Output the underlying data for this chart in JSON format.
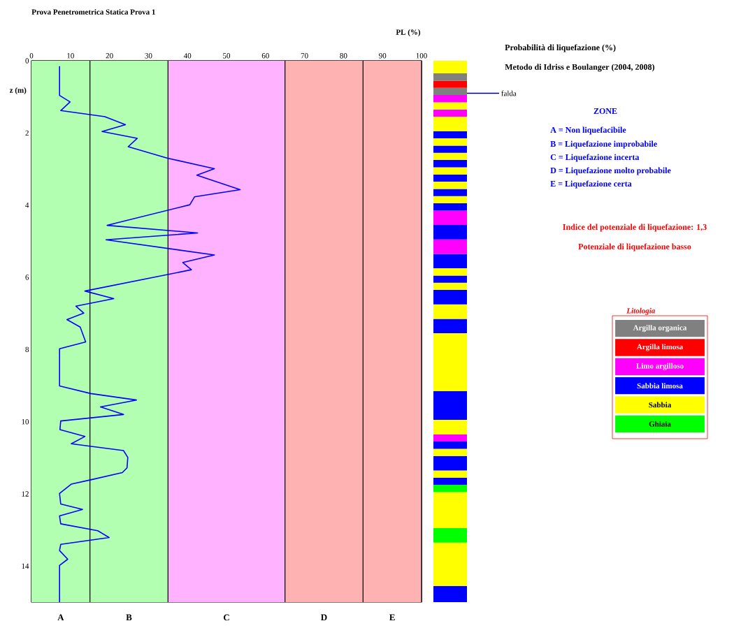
{
  "chart_data": [
    {
      "type": "line",
      "title": "Prova Penetrometrica Statica Prova 1",
      "xlabel": "PL (%)",
      "ylabel": "z (m)",
      "xlim": [
        0,
        100
      ],
      "xticks": [
        0,
        10,
        20,
        30,
        40,
        50,
        60,
        70,
        80,
        90,
        100
      ],
      "ylim": [
        15,
        0
      ],
      "yticks": [
        0,
        2,
        4,
        6,
        8,
        10,
        12,
        14
      ],
      "grid": true,
      "bands": [
        {
          "axis": "x",
          "from": 0,
          "to": 15,
          "label": "A",
          "color": "#b2ffb2"
        },
        {
          "axis": "x",
          "from": 15,
          "to": 35,
          "label": "B",
          "color": "#b2ffb2"
        },
        {
          "axis": "x",
          "from": 35,
          "to": 65,
          "label": "C",
          "color": "#ffb2ff"
        },
        {
          "axis": "x",
          "from": 65,
          "to": 85,
          "label": "D",
          "color": "#ffb2b2"
        },
        {
          "axis": "x",
          "from": 85,
          "to": 100,
          "label": "E",
          "color": "#ffb2b2"
        }
      ],
      "series": [
        {
          "color": "#0000ff",
          "x": [
            7.2,
            7.2,
            9.9,
            7.5,
            18.8,
            24.1,
            18.1,
            27.1,
            24.8,
            34.9,
            46.9,
            42.4,
            53.5,
            41.8,
            40.6,
            19.4,
            42.6,
            19.1,
            46.9,
            38.8,
            41.0,
            13.7,
            21.1,
            11.4,
            13.4,
            9.1,
            12.5,
            13.9,
            7.2,
            7.2,
            15.2,
            26.9,
            17.7,
            23.6,
            7.5,
            7.3,
            13.7,
            10.2,
            23.6,
            24.7,
            24.5,
            23.3,
            15.2,
            10.2,
            7.2,
            7.5,
            13.1,
            7.2,
            7.5,
            17.0,
            19.9,
            7.5,
            7.2,
            9.3,
            7.2,
            7.2
          ],
          "values": [
            0.15,
            0.96,
            1.14,
            1.38,
            1.55,
            1.77,
            1.96,
            2.15,
            2.38,
            2.7,
            2.99,
            3.17,
            3.57,
            3.77,
            3.99,
            4.56,
            4.77,
            4.96,
            5.38,
            5.59,
            5.79,
            6.38,
            6.59,
            6.8,
            6.99,
            7.17,
            7.38,
            7.79,
            7.98,
            9.01,
            9.22,
            9.4,
            9.59,
            9.8,
            9.98,
            10.22,
            10.41,
            10.61,
            10.8,
            10.99,
            11.28,
            11.41,
            11.61,
            11.73,
            11.99,
            12.28,
            12.43,
            12.61,
            12.83,
            13.02,
            13.21,
            13.4,
            13.57,
            13.81,
            13.98,
            15
          ]
        }
      ],
      "annotations": [
        "Probabilità di liquefazione (%)",
        "Metodo di Idriss e Boulanger (2004, 2008)",
        "ZONE",
        "A = Non liquefacibile",
        "B = Liquefazione improbabile",
        "C = Liquefazione incerta",
        "D = Liquefazione molto probabile",
        "E = Liquefazione certa",
        "Indice del potenziale di liquefazione: 1,3",
        "Potenziale di liquefazione basso"
      ]
    },
    {
      "type": "bar",
      "stacked": true,
      "categories": [
        null
      ],
      "ylim": [
        15,
        0
      ],
      "tick_labels": false,
      "ref_lines": [
        {
          "axis": "y",
          "value": 0.9,
          "label": "falda",
          "color": "#000080"
        }
      ],
      "series": [
        {
          "color": "#ffff00",
          "values": [
            0.35
          ]
        },
        {
          "color": "#808080",
          "values": [
            0.2
          ]
        },
        {
          "color": "#ff0000",
          "values": [
            0.2
          ]
        },
        {
          "color": "#808080",
          "values": [
            0.2
          ]
        },
        {
          "color": "#ff00ff",
          "values": [
            0.2
          ]
        },
        {
          "color": "#ffff00",
          "values": [
            0.2
          ]
        },
        {
          "color": "#ff00ff",
          "values": [
            0.2
          ]
        },
        {
          "color": "#ffff00",
          "values": [
            0.4
          ]
        },
        {
          "color": "#0000ff",
          "values": [
            0.2
          ]
        },
        {
          "color": "#ffff00",
          "values": [
            0.2
          ]
        },
        {
          "color": "#0000ff",
          "values": [
            0.2
          ]
        },
        {
          "color": "#ffff00",
          "values": [
            0.2
          ]
        },
        {
          "color": "#0000ff",
          "values": [
            0.2
          ]
        },
        {
          "color": "#ffff00",
          "values": [
            0.2
          ]
        },
        {
          "color": "#0000ff",
          "values": [
            0.2
          ]
        },
        {
          "color": "#ffff00",
          "values": [
            0.2
          ]
        },
        {
          "color": "#0000ff",
          "values": [
            0.2
          ]
        },
        {
          "color": "#ffff00",
          "values": [
            0.2
          ]
        },
        {
          "color": "#0000ff",
          "values": [
            0.2
          ]
        },
        {
          "color": "#ff00ff",
          "values": [
            0.4
          ]
        },
        {
          "color": "#0000ff",
          "values": [
            0.4
          ]
        },
        {
          "color": "#ff00ff",
          "values": [
            0.4
          ]
        },
        {
          "color": "#0000ff",
          "values": [
            0.4
          ]
        },
        {
          "color": "#ffff00",
          "values": [
            0.2
          ]
        },
        {
          "color": "#0000ff",
          "values": [
            0.2
          ]
        },
        {
          "color": "#ffff00",
          "values": [
            0.2
          ]
        },
        {
          "color": "#0000ff",
          "values": [
            0.4
          ]
        },
        {
          "color": "#ffff00",
          "values": [
            0.4
          ]
        },
        {
          "color": "#0000ff",
          "values": [
            0.4
          ]
        },
        {
          "color": "#ffff00",
          "values": [
            1.6
          ]
        },
        {
          "color": "#0000ff",
          "values": [
            0.8
          ]
        },
        {
          "color": "#ffff00",
          "values": [
            0.4
          ]
        },
        {
          "color": "#ff00ff",
          "values": [
            0.2
          ]
        },
        {
          "color": "#0000ff",
          "values": [
            0.2
          ]
        },
        {
          "color": "#ffff00",
          "values": [
            0.2
          ]
        },
        {
          "color": "#0000ff",
          "values": [
            0.4
          ]
        },
        {
          "color": "#ffff00",
          "values": [
            0.2
          ]
        },
        {
          "color": "#0000ff",
          "values": [
            0.2
          ]
        },
        {
          "color": "#00ff00",
          "values": [
            0.2
          ]
        },
        {
          "color": "#ffff00",
          "values": [
            1.0
          ]
        },
        {
          "color": "#00ff00",
          "values": [
            0.4
          ]
        },
        {
          "color": "#ffff00",
          "values": [
            1.2
          ]
        },
        {
          "color": "#0000ff",
          "values": [
            0.45
          ]
        }
      ]
    },
    {
      "type": "other",
      "title": "Litologia",
      "categories": [
        "Argilla organica",
        "Argilla limosa",
        "Limo argilloso",
        "Sabbia limosa",
        "Sabbia",
        "Ghiaia"
      ],
      "colors": [
        "#808080",
        "#ff0000",
        "#ff00ff",
        "#0000ff",
        "#ffff00",
        "#00ff00"
      ]
    }
  ]
}
